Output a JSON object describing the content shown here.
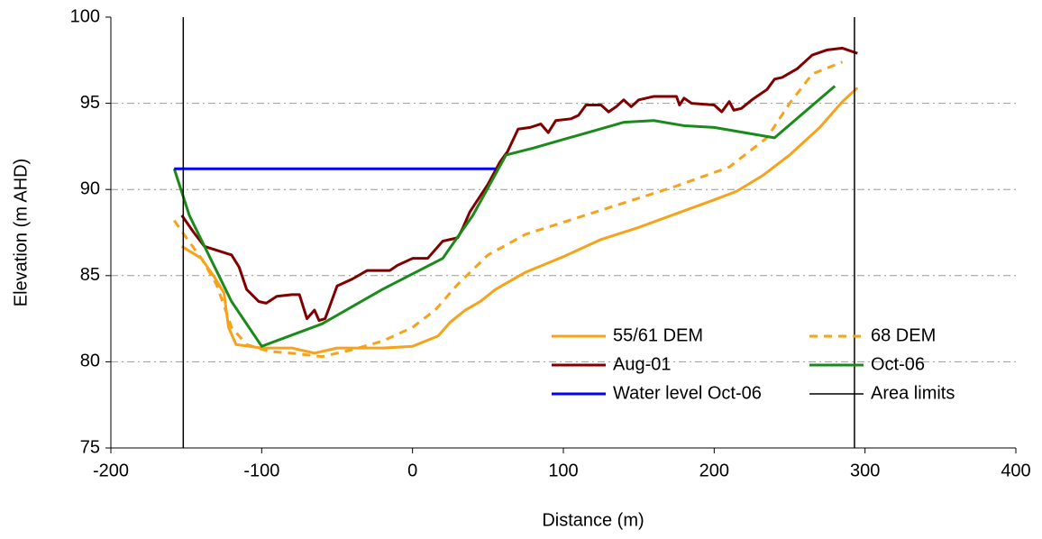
{
  "chart_data": {
    "type": "line",
    "x_label": "Distance (m)",
    "y_label": "Elevation (m AHD)",
    "xlim": [
      -200,
      400
    ],
    "xticks": [
      -200,
      -100,
      0,
      100,
      200,
      300,
      400
    ],
    "ylim": [
      75,
      100
    ],
    "yticks": [
      75,
      80,
      85,
      90,
      95,
      100
    ],
    "grid": true,
    "legend": "lower right",
    "series": [
      {
        "name": "55/61 DEM",
        "color": "#f7a21b",
        "dash": false,
        "x": [
          -153,
          -140,
          -132,
          -125,
          -122,
          -117,
          -100,
          -80,
          -65,
          -50,
          -20,
          0,
          17,
          25,
          35,
          45,
          55,
          75,
          100,
          125,
          150,
          175,
          200,
          215,
          232,
          250,
          270,
          285,
          295
        ],
        "values": [
          86.7,
          86,
          85,
          84,
          82,
          81,
          80.8,
          80.8,
          80.5,
          80.8,
          80.8,
          80.9,
          81.5,
          82.3,
          83,
          83.5,
          84.2,
          85.2,
          86.1,
          87.1,
          87.8,
          88.6,
          89.4,
          89.9,
          90.8,
          92,
          93.6,
          95.1,
          95.9
        ]
      },
      {
        "name": "68 DEM",
        "color": "#f7a21b",
        "dash": true,
        "x": [
          -158,
          -150,
          -140,
          -130,
          -120,
          -110,
          -95,
          -80,
          -60,
          -40,
          -20,
          0,
          15,
          30,
          50,
          75,
          100,
          150,
          175,
          210,
          235,
          250,
          265,
          285
        ],
        "values": [
          88.2,
          87.2,
          86,
          84.5,
          82,
          81,
          80.6,
          80.5,
          80.3,
          80.7,
          81.2,
          82,
          83,
          84.5,
          86.2,
          87.4,
          88.1,
          89.5,
          90.2,
          91.3,
          93,
          95,
          96.7,
          97.4
        ]
      },
      {
        "name": "Aug-01",
        "color": "#800000",
        "dash": false,
        "x": [
          -153,
          -145,
          -138,
          -120,
          -115,
          -110,
          -102,
          -97,
          -90,
          -80,
          -75,
          -70,
          -65,
          -62,
          -58,
          -55,
          -50,
          -40,
          -30,
          -15,
          -10,
          0,
          10,
          20,
          30,
          33,
          38,
          50,
          58,
          63,
          70,
          78,
          85,
          90,
          95,
          105,
          110,
          115,
          125,
          130,
          135,
          140,
          145,
          150,
          160,
          175,
          177,
          180,
          185,
          200,
          205,
          210,
          213,
          218,
          225,
          230,
          235,
          240,
          245,
          255,
          265,
          275,
          285,
          295
        ],
        "values": [
          88.5,
          87.5,
          86.7,
          86.2,
          85.5,
          84.2,
          83.5,
          83.4,
          83.8,
          83.9,
          83.9,
          82.5,
          83,
          82.4,
          82.5,
          83.2,
          84.4,
          84.8,
          85.3,
          85.3,
          85.6,
          86,
          86,
          87,
          87.2,
          87.7,
          88.7,
          90.3,
          91.6,
          92.2,
          93.5,
          93.6,
          93.8,
          93.3,
          94,
          94.1,
          94.3,
          94.9,
          94.9,
          94.5,
          94.8,
          95.2,
          94.8,
          95.2,
          95.4,
          95.4,
          94.9,
          95.3,
          95,
          94.9,
          94.5,
          95.1,
          94.6,
          94.7,
          95.2,
          95.5,
          95.8,
          96.4,
          96.5,
          97,
          97.8,
          98.1,
          98.2,
          97.9
        ]
      },
      {
        "name": "Oct-06",
        "color": "#1a8a1a",
        "dash": false,
        "x": [
          -158,
          -148,
          -120,
          -100,
          -60,
          -20,
          20,
          40,
          62,
          80,
          140,
          160,
          180,
          200,
          240,
          280
        ],
        "values": [
          91.2,
          88.5,
          83.5,
          80.9,
          82.2,
          84.2,
          86,
          88.5,
          92,
          92.4,
          93.9,
          94,
          93.7,
          93.6,
          93,
          96
        ]
      },
      {
        "name": "Water level Oct-06",
        "color": "#0000ff",
        "dash": false,
        "x": [
          -158,
          55
        ],
        "values": [
          91.2,
          91.2
        ]
      },
      {
        "name": "Area limits",
        "color": "#000000",
        "vertical": true,
        "x": [
          -152,
          293
        ]
      }
    ]
  }
}
